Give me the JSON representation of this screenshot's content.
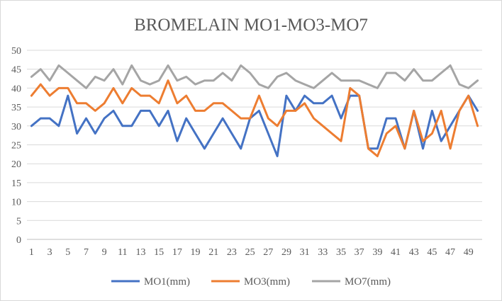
{
  "chart_data": {
    "type": "line",
    "title": "BROMELAIN  MO1-MO3-MO7",
    "xlabel": "",
    "ylabel": "",
    "x": [
      1,
      2,
      3,
      4,
      5,
      6,
      7,
      8,
      9,
      10,
      11,
      12,
      13,
      14,
      15,
      16,
      17,
      18,
      19,
      20,
      21,
      22,
      23,
      24,
      25,
      26,
      27,
      28,
      29,
      30,
      31,
      32,
      33,
      34,
      35,
      36,
      37,
      38,
      39,
      40,
      41,
      42,
      43,
      44,
      45,
      46,
      47,
      48,
      49,
      50
    ],
    "x_tick_labels": [
      "1",
      "3",
      "5",
      "7",
      "9",
      "11",
      "13",
      "15",
      "17",
      "19",
      "21",
      "23",
      "25",
      "27",
      "29",
      "31",
      "33",
      "35",
      "37",
      "39",
      "41",
      "43",
      "45",
      "47",
      "49"
    ],
    "ylim": [
      0,
      50
    ],
    "y_ticks": [
      0,
      5,
      10,
      15,
      20,
      25,
      30,
      35,
      40,
      45,
      50
    ],
    "grid": "horizontal",
    "legend_position": "bottom",
    "series": [
      {
        "name": "MO1(mm)",
        "color": "#4472C4",
        "values": [
          30,
          32,
          32,
          30,
          38,
          28,
          32,
          28,
          32,
          34,
          30,
          30,
          34,
          34,
          30,
          34,
          26,
          32,
          28,
          24,
          28,
          32,
          28,
          24,
          32,
          34,
          28,
          22,
          38,
          34,
          38,
          36,
          36,
          38,
          32,
          38,
          38,
          24,
          24,
          32,
          32,
          24,
          34,
          24,
          34,
          26,
          30,
          34,
          38,
          34
        ]
      },
      {
        "name": "MO3(mm)",
        "color": "#ED7D31",
        "values": [
          38,
          41,
          38,
          40,
          40,
          36,
          36,
          34,
          36,
          40,
          36,
          40,
          38,
          38,
          36,
          42,
          36,
          38,
          34,
          34,
          36,
          36,
          34,
          32,
          32,
          38,
          32,
          30,
          34,
          34,
          36,
          32,
          30,
          28,
          26,
          40,
          38,
          24,
          22,
          28,
          30,
          24,
          34,
          26,
          28,
          34,
          24,
          34,
          38,
          30
        ]
      },
      {
        "name": "MO7(mm)",
        "color": "#A5A5A5",
        "values": [
          43,
          45,
          42,
          46,
          44,
          42,
          40,
          43,
          42,
          45,
          41,
          46,
          42,
          41,
          42,
          46,
          42,
          43,
          41,
          42,
          42,
          44,
          42,
          46,
          44,
          41,
          40,
          43,
          44,
          42,
          41,
          40,
          42,
          44,
          42,
          42,
          42,
          41,
          40,
          44,
          44,
          42,
          45,
          42,
          42,
          44,
          46,
          41,
          40,
          42
        ]
      }
    ]
  }
}
